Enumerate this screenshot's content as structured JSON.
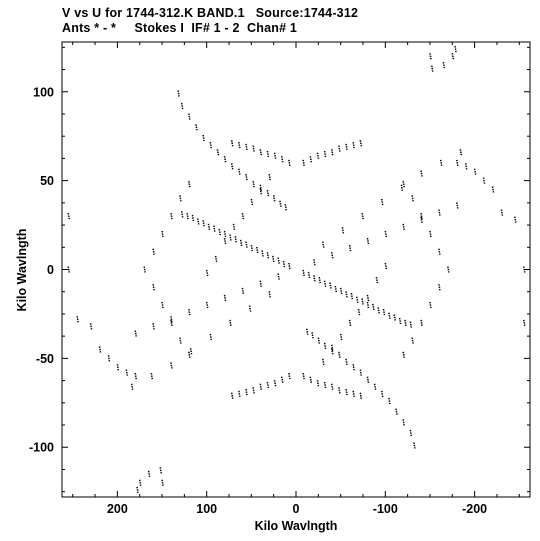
{
  "header": {
    "line1": "V vs U for 1744-312.K BAND.1   Source:1744-312",
    "line2": "Ants * - *     Stokes I  IF# 1 - 2  Chan# 1"
  },
  "chart_data": {
    "type": "scatter",
    "title": "V vs U for 1744-312.K BAND.1   Source:1744-312",
    "subtitle": "Ants * - *     Stokes I  IF# 1 - 2  Chan# 1",
    "xlabel": "Kilo Wavlngth",
    "ylabel": "Kilo Wavlngth",
    "xlim": [
      262,
      -262
    ],
    "ylim": [
      -128,
      128
    ],
    "x_inverted": true,
    "xticks": [
      200,
      100,
      0,
      -100,
      -200
    ],
    "xtick_labels": [
      "200",
      "100",
      "0",
      "-100",
      "-200"
    ],
    "yticks": [
      100,
      50,
      0,
      -50,
      -100
    ],
    "ytick_labels": [
      "100",
      "50",
      "0",
      "-50",
      "-100"
    ],
    "grid": false,
    "legend": "none",
    "marker": "small black dashes",
    "color": "#000000",
    "series": [
      {
        "points": [
          [
            -8,
            -2
          ],
          [
            -14,
            -3
          ],
          [
            -20,
            -5
          ],
          [
            -26,
            -6
          ],
          [
            -32,
            -8
          ],
          [
            -38,
            -9
          ],
          [
            -44,
            -11
          ],
          [
            -50,
            -12
          ],
          [
            -56,
            -14
          ],
          [
            -62,
            -15
          ],
          [
            -68,
            -17
          ],
          [
            -74,
            -18
          ],
          [
            -80,
            -20
          ],
          [
            -86,
            -21
          ],
          [
            -92,
            -23
          ],
          [
            -98,
            -24
          ],
          [
            -104,
            -26
          ],
          [
            -110,
            -27
          ],
          [
            -116,
            -29
          ],
          [
            -122,
            -30
          ],
          [
            -128,
            -31
          ],
          [
            8,
            2
          ],
          [
            14,
            3
          ],
          [
            20,
            5
          ],
          [
            26,
            6
          ],
          [
            32,
            8
          ],
          [
            38,
            9
          ],
          [
            44,
            11
          ],
          [
            50,
            12
          ],
          [
            56,
            14
          ],
          [
            62,
            15
          ],
          [
            68,
            17
          ],
          [
            74,
            18
          ],
          [
            80,
            20
          ],
          [
            86,
            21
          ],
          [
            92,
            23
          ],
          [
            98,
            24
          ],
          [
            104,
            26
          ],
          [
            110,
            27
          ],
          [
            116,
            29
          ],
          [
            122,
            30
          ],
          [
            128,
            31
          ],
          [
            -12,
            -35
          ],
          [
            -18,
            -37
          ],
          [
            -25,
            -40
          ],
          [
            -32,
            -43
          ],
          [
            -40,
            -46
          ],
          [
            -48,
            -48
          ],
          [
            -56,
            -52
          ],
          [
            -64,
            -55
          ],
          [
            -72,
            -58
          ],
          [
            -80,
            -62
          ],
          [
            -88,
            -66
          ],
          [
            -96,
            -70
          ],
          [
            -104,
            -74
          ],
          [
            -112,
            -80
          ],
          [
            -120,
            -86
          ],
          [
            -128,
            -92
          ],
          [
            -132,
            -99
          ],
          [
            12,
            35
          ],
          [
            18,
            37
          ],
          [
            25,
            40
          ],
          [
            32,
            43
          ],
          [
            40,
            46
          ],
          [
            48,
            48
          ],
          [
            56,
            52
          ],
          [
            64,
            55
          ],
          [
            72,
            58
          ],
          [
            80,
            62
          ],
          [
            88,
            66
          ],
          [
            96,
            70
          ],
          [
            104,
            74
          ],
          [
            112,
            80
          ],
          [
            120,
            86
          ],
          [
            128,
            92
          ],
          [
            132,
            99
          ],
          [
            -20,
            4
          ],
          [
            -40,
            8
          ],
          [
            -60,
            12
          ],
          [
            -80,
            16
          ],
          [
            -100,
            20
          ],
          [
            -120,
            24
          ],
          [
            -140,
            28
          ],
          [
            -160,
            32
          ],
          [
            -180,
            36
          ],
          [
            20,
            -4
          ],
          [
            40,
            -8
          ],
          [
            60,
            -12
          ],
          [
            80,
            -16
          ],
          [
            100,
            -20
          ],
          [
            120,
            -24
          ],
          [
            140,
            -28
          ],
          [
            160,
            -32
          ],
          [
            180,
            -36
          ],
          [
            -30,
            14
          ],
          [
            -52,
            22
          ],
          [
            -74,
            30
          ],
          [
            -96,
            38
          ],
          [
            -118,
            46
          ],
          [
            -140,
            54
          ],
          [
            -162,
            60
          ],
          [
            -184,
            66
          ],
          [
            30,
            -14
          ],
          [
            52,
            -22
          ],
          [
            74,
            -30
          ],
          [
            96,
            -38
          ],
          [
            118,
            -46
          ],
          [
            140,
            -54
          ],
          [
            162,
            -60
          ],
          [
            184,
            -66
          ],
          [
            -8,
            60
          ],
          [
            -16,
            62
          ],
          [
            -24,
            64
          ],
          [
            -32,
            65
          ],
          [
            -40,
            66
          ],
          [
            -48,
            68
          ],
          [
            -56,
            69
          ],
          [
            -64,
            70
          ],
          [
            -72,
            71
          ],
          [
            8,
            60
          ],
          [
            16,
            62
          ],
          [
            24,
            64
          ],
          [
            32,
            65
          ],
          [
            40,
            66
          ],
          [
            48,
            68
          ],
          [
            56,
            69
          ],
          [
            64,
            70
          ],
          [
            72,
            71
          ],
          [
            -8,
            -60
          ],
          [
            -16,
            -62
          ],
          [
            -24,
            -64
          ],
          [
            -32,
            -65
          ],
          [
            -40,
            -66
          ],
          [
            -48,
            -68
          ],
          [
            -56,
            -69
          ],
          [
            -64,
            -70
          ],
          [
            -72,
            -71
          ],
          [
            8,
            -60
          ],
          [
            16,
            -62
          ],
          [
            24,
            -64
          ],
          [
            32,
            -65
          ],
          [
            40,
            -66
          ],
          [
            48,
            -68
          ],
          [
            56,
            -69
          ],
          [
            64,
            -70
          ],
          [
            72,
            -71
          ],
          [
            -150,
            120
          ],
          [
            -152,
            113
          ],
          [
            -165,
            115
          ],
          [
            -175,
            120
          ],
          [
            -178,
            124
          ],
          [
            150,
            -120
          ],
          [
            152,
            -113
          ],
          [
            165,
            -115
          ],
          [
            175,
            -120
          ],
          [
            178,
            -124
          ],
          [
            -180,
            60
          ],
          [
            -190,
            58
          ],
          [
            -200,
            55
          ],
          [
            -210,
            50
          ],
          [
            -220,
            45
          ],
          [
            -230,
            32
          ],
          [
            -245,
            28
          ],
          [
            -255,
            0
          ],
          [
            -255,
            -30
          ],
          [
            180,
            -60
          ],
          [
            190,
            -58
          ],
          [
            200,
            -55
          ],
          [
            210,
            -50
          ],
          [
            220,
            -45
          ],
          [
            230,
            -32
          ],
          [
            245,
            -28
          ],
          [
            255,
            0
          ],
          [
            255,
            30
          ],
          [
            -120,
            48
          ],
          [
            -130,
            40
          ],
          [
            -140,
            30
          ],
          [
            -150,
            20
          ],
          [
            -160,
            10
          ],
          [
            -170,
            0
          ],
          [
            -160,
            -10
          ],
          [
            -150,
            -20
          ],
          [
            -140,
            -30
          ],
          [
            -130,
            -40
          ],
          [
            -120,
            -48
          ],
          [
            120,
            48
          ],
          [
            130,
            40
          ],
          [
            140,
            30
          ],
          [
            150,
            20
          ],
          [
            160,
            10
          ],
          [
            170,
            0
          ],
          [
            160,
            -10
          ],
          [
            150,
            -20
          ],
          [
            140,
            -30
          ],
          [
            130,
            -40
          ],
          [
            120,
            -48
          ],
          [
            -100,
            2
          ],
          [
            -90,
            -6
          ],
          [
            -80,
            -16
          ],
          [
            -70,
            -24
          ],
          [
            -60,
            -30
          ],
          [
            -50,
            -38
          ],
          [
            -40,
            -44
          ],
          [
            -30,
            -52
          ],
          [
            100,
            -2
          ],
          [
            90,
            6
          ],
          [
            80,
            16
          ],
          [
            70,
            24
          ],
          [
            60,
            30
          ],
          [
            50,
            38
          ],
          [
            40,
            44
          ],
          [
            30,
            52
          ]
        ]
      }
    ]
  }
}
